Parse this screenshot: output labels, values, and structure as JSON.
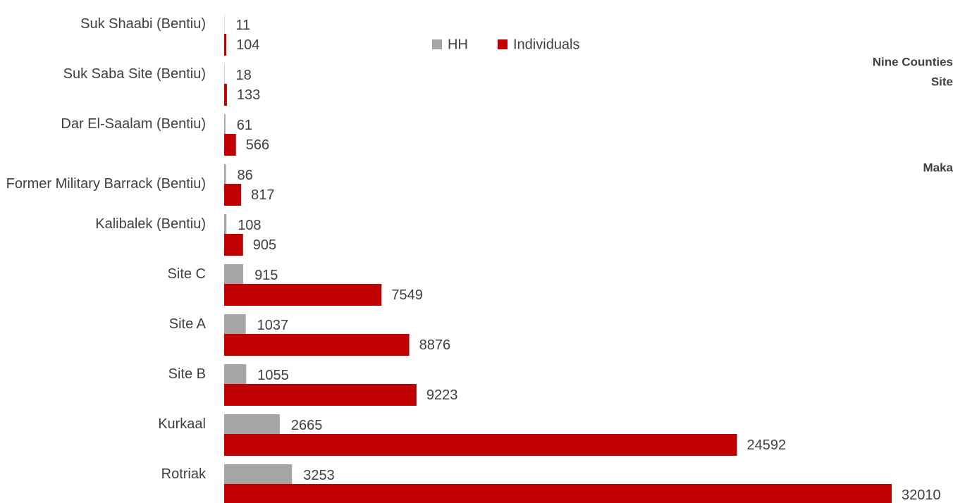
{
  "chart_data": {
    "type": "bar",
    "categories": [
      "Suk Shaabi (Bentiu)",
      "Suk Saba Site (Bentiu)",
      "Dar El-Saalam (Bentiu)",
      "Former Military Barrack (Bentiu)",
      "Kalibalek (Bentiu)",
      "Site C",
      "Site A",
      "Site B",
      "Kurkaal",
      "Rotriak"
    ],
    "series": [
      {
        "name": "HH",
        "color": "#a5a5a5",
        "values": [
          11,
          18,
          61,
          86,
          108,
          915,
          1037,
          1055,
          2665,
          3253
        ]
      },
      {
        "name": "Individuals",
        "color": "#c00000",
        "values": [
          104,
          133,
          566,
          817,
          905,
          7549,
          8876,
          9223,
          24592,
          32010
        ]
      }
    ],
    "annotations": [
      "Nine Counties",
      "Site",
      "Maka"
    ]
  }
}
